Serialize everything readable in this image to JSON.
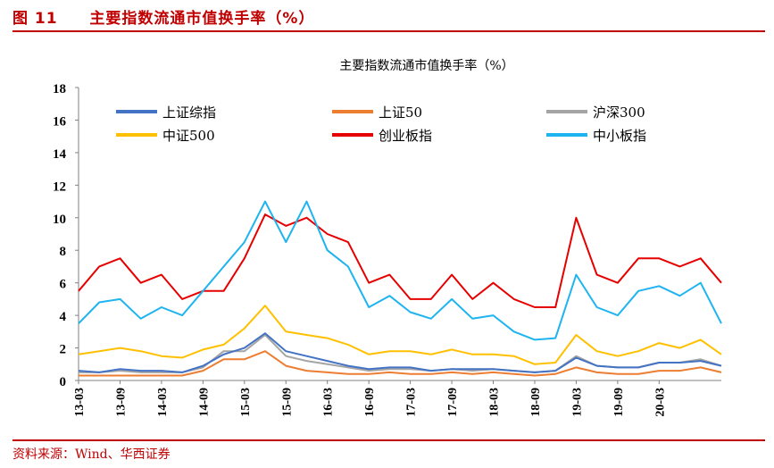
{
  "figure": {
    "label": "图 11",
    "title": "主要指数流通市值换手率（%）",
    "source": "资料来源：Wind、华西证券"
  },
  "colors": {
    "brand_red": "#C00000",
    "上证综指": "#4472C4",
    "上证50": "#ED7D31",
    "沪深300": "#A5A5A5",
    "中证500": "#FFC000",
    "创业板指": "#E60000",
    "中小板指": "#1EB4F0"
  },
  "chart_data": {
    "type": "line",
    "title": "主要指数流通市值换手率（%）",
    "xlabel": "",
    "ylabel": "",
    "ylim": [
      0,
      18
    ],
    "yticks": [
      0,
      2,
      4,
      6,
      8,
      10,
      12,
      14,
      16,
      18
    ],
    "xlim": [
      "2013-03",
      "2020-12"
    ],
    "xticks": [
      "13-03",
      "13-09",
      "14-03",
      "14-09",
      "15-03",
      "15-09",
      "16-03",
      "16-09",
      "17-03",
      "17-09",
      "18-03",
      "18-09",
      "19-03",
      "19-09",
      "20-03"
    ],
    "grid": false,
    "legend_position": "top, 3 columns",
    "x": [
      "2013-03",
      "2013-06",
      "2013-09",
      "2013-12",
      "2014-03",
      "2014-06",
      "2014-09",
      "2014-12",
      "2015-03",
      "2015-06",
      "2015-09",
      "2015-12",
      "2016-03",
      "2016-06",
      "2016-09",
      "2016-12",
      "2017-03",
      "2017-06",
      "2017-09",
      "2017-12",
      "2018-03",
      "2018-06",
      "2018-09",
      "2018-12",
      "2019-03",
      "2019-06",
      "2019-09",
      "2019-12",
      "2020-03",
      "2020-06",
      "2020-09",
      "2020-12"
    ],
    "series": [
      {
        "name": "上证综指",
        "color": "#4472C4",
        "values": [
          0.6,
          0.5,
          0.7,
          0.6,
          0.6,
          0.5,
          0.9,
          1.6,
          2.0,
          2.9,
          1.8,
          1.5,
          1.2,
          0.9,
          0.7,
          0.8,
          0.8,
          0.6,
          0.7,
          0.7,
          0.7,
          0.6,
          0.5,
          0.6,
          1.4,
          0.9,
          0.8,
          0.8,
          1.1,
          1.1,
          1.2,
          0.9
        ]
      },
      {
        "name": "上证50",
        "color": "#ED7D31",
        "values": [
          0.3,
          0.3,
          0.3,
          0.3,
          0.3,
          0.3,
          0.6,
          1.3,
          1.3,
          1.8,
          0.9,
          0.6,
          0.5,
          0.4,
          0.4,
          0.5,
          0.4,
          0.4,
          0.5,
          0.4,
          0.5,
          0.4,
          0.3,
          0.4,
          0.8,
          0.5,
          0.4,
          0.4,
          0.6,
          0.6,
          0.8,
          0.5
        ]
      },
      {
        "name": "沪深300",
        "color": "#A5A5A5",
        "values": [
          0.5,
          0.5,
          0.6,
          0.5,
          0.5,
          0.5,
          0.8,
          1.8,
          1.8,
          2.8,
          1.5,
          1.2,
          1.0,
          0.8,
          0.6,
          0.7,
          0.7,
          0.6,
          0.7,
          0.6,
          0.7,
          0.6,
          0.5,
          0.6,
          1.5,
          0.9,
          0.8,
          0.8,
          1.1,
          1.1,
          1.3,
          0.9
        ]
      },
      {
        "name": "中证500",
        "color": "#FFC000",
        "values": [
          1.6,
          1.8,
          2.0,
          1.8,
          1.5,
          1.4,
          1.9,
          2.2,
          3.2,
          4.6,
          3.0,
          2.8,
          2.6,
          2.2,
          1.6,
          1.8,
          1.8,
          1.6,
          1.9,
          1.6,
          1.6,
          1.5,
          1.0,
          1.1,
          2.8,
          1.8,
          1.5,
          1.8,
          2.3,
          2.0,
          2.5,
          1.6
        ]
      },
      {
        "name": "创业板指",
        "color": "#E60000",
        "values": [
          5.5,
          7.0,
          7.5,
          6.0,
          6.5,
          5.0,
          5.5,
          5.5,
          7.5,
          10.2,
          9.5,
          10.0,
          9.0,
          8.5,
          6.0,
          6.5,
          5.0,
          5.0,
          6.5,
          5.0,
          6.0,
          5.0,
          4.5,
          4.5,
          10.0,
          6.5,
          6.0,
          7.5,
          7.5,
          7.0,
          7.5,
          6.0
        ]
      },
      {
        "name": "中小板指",
        "color": "#1EB4F0",
        "values": [
          3.5,
          4.8,
          5.0,
          3.8,
          4.5,
          4.0,
          5.5,
          7.0,
          8.5,
          11.0,
          8.5,
          11.0,
          8.0,
          7.0,
          4.5,
          5.2,
          4.2,
          3.8,
          5.0,
          3.8,
          4.0,
          3.0,
          2.5,
          2.6,
          6.5,
          4.5,
          4.0,
          5.5,
          5.8,
          5.2,
          6.0,
          3.5
        ]
      }
    ]
  }
}
